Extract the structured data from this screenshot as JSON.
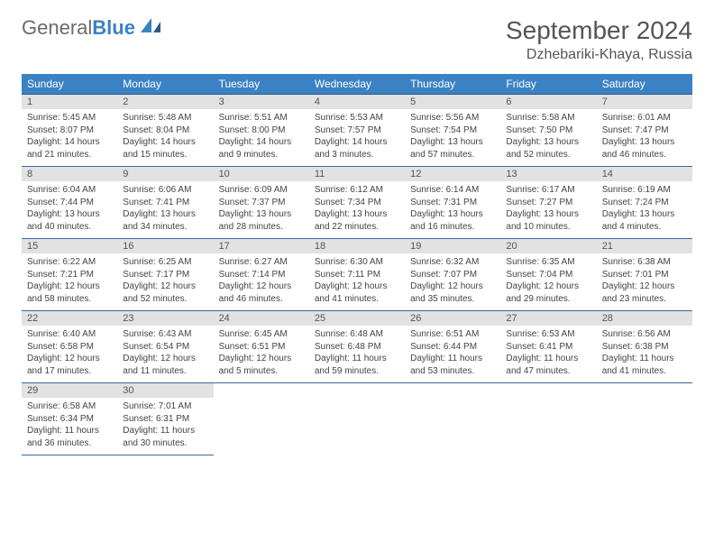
{
  "logo": {
    "text_gray": "General",
    "text_blue": "Blue"
  },
  "header": {
    "month_title": "September 2024",
    "location": "Dzhebariki-Khaya, Russia"
  },
  "colors": {
    "header_bg": "#3b82c4",
    "header_text": "#ffffff",
    "daynum_bg": "#e2e2e2",
    "border": "#2c5a8f",
    "body_text": "#444444",
    "title_text": "#555555"
  },
  "day_names": [
    "Sunday",
    "Monday",
    "Tuesday",
    "Wednesday",
    "Thursday",
    "Friday",
    "Saturday"
  ],
  "days": [
    {
      "n": 1,
      "sunrise": "5:45 AM",
      "sunset": "8:07 PM",
      "daylight": "14 hours and 21 minutes."
    },
    {
      "n": 2,
      "sunrise": "5:48 AM",
      "sunset": "8:04 PM",
      "daylight": "14 hours and 15 minutes."
    },
    {
      "n": 3,
      "sunrise": "5:51 AM",
      "sunset": "8:00 PM",
      "daylight": "14 hours and 9 minutes."
    },
    {
      "n": 4,
      "sunrise": "5:53 AM",
      "sunset": "7:57 PM",
      "daylight": "14 hours and 3 minutes."
    },
    {
      "n": 5,
      "sunrise": "5:56 AM",
      "sunset": "7:54 PM",
      "daylight": "13 hours and 57 minutes."
    },
    {
      "n": 6,
      "sunrise": "5:58 AM",
      "sunset": "7:50 PM",
      "daylight": "13 hours and 52 minutes."
    },
    {
      "n": 7,
      "sunrise": "6:01 AM",
      "sunset": "7:47 PM",
      "daylight": "13 hours and 46 minutes."
    },
    {
      "n": 8,
      "sunrise": "6:04 AM",
      "sunset": "7:44 PM",
      "daylight": "13 hours and 40 minutes."
    },
    {
      "n": 9,
      "sunrise": "6:06 AM",
      "sunset": "7:41 PM",
      "daylight": "13 hours and 34 minutes."
    },
    {
      "n": 10,
      "sunrise": "6:09 AM",
      "sunset": "7:37 PM",
      "daylight": "13 hours and 28 minutes."
    },
    {
      "n": 11,
      "sunrise": "6:12 AM",
      "sunset": "7:34 PM",
      "daylight": "13 hours and 22 minutes."
    },
    {
      "n": 12,
      "sunrise": "6:14 AM",
      "sunset": "7:31 PM",
      "daylight": "13 hours and 16 minutes."
    },
    {
      "n": 13,
      "sunrise": "6:17 AM",
      "sunset": "7:27 PM",
      "daylight": "13 hours and 10 minutes."
    },
    {
      "n": 14,
      "sunrise": "6:19 AM",
      "sunset": "7:24 PM",
      "daylight": "13 hours and 4 minutes."
    },
    {
      "n": 15,
      "sunrise": "6:22 AM",
      "sunset": "7:21 PM",
      "daylight": "12 hours and 58 minutes."
    },
    {
      "n": 16,
      "sunrise": "6:25 AM",
      "sunset": "7:17 PM",
      "daylight": "12 hours and 52 minutes."
    },
    {
      "n": 17,
      "sunrise": "6:27 AM",
      "sunset": "7:14 PM",
      "daylight": "12 hours and 46 minutes."
    },
    {
      "n": 18,
      "sunrise": "6:30 AM",
      "sunset": "7:11 PM",
      "daylight": "12 hours and 41 minutes."
    },
    {
      "n": 19,
      "sunrise": "6:32 AM",
      "sunset": "7:07 PM",
      "daylight": "12 hours and 35 minutes."
    },
    {
      "n": 20,
      "sunrise": "6:35 AM",
      "sunset": "7:04 PM",
      "daylight": "12 hours and 29 minutes."
    },
    {
      "n": 21,
      "sunrise": "6:38 AM",
      "sunset": "7:01 PM",
      "daylight": "12 hours and 23 minutes."
    },
    {
      "n": 22,
      "sunrise": "6:40 AM",
      "sunset": "6:58 PM",
      "daylight": "12 hours and 17 minutes."
    },
    {
      "n": 23,
      "sunrise": "6:43 AM",
      "sunset": "6:54 PM",
      "daylight": "12 hours and 11 minutes."
    },
    {
      "n": 24,
      "sunrise": "6:45 AM",
      "sunset": "6:51 PM",
      "daylight": "12 hours and 5 minutes."
    },
    {
      "n": 25,
      "sunrise": "6:48 AM",
      "sunset": "6:48 PM",
      "daylight": "11 hours and 59 minutes."
    },
    {
      "n": 26,
      "sunrise": "6:51 AM",
      "sunset": "6:44 PM",
      "daylight": "11 hours and 53 minutes."
    },
    {
      "n": 27,
      "sunrise": "6:53 AM",
      "sunset": "6:41 PM",
      "daylight": "11 hours and 47 minutes."
    },
    {
      "n": 28,
      "sunrise": "6:56 AM",
      "sunset": "6:38 PM",
      "daylight": "11 hours and 41 minutes."
    },
    {
      "n": 29,
      "sunrise": "6:58 AM",
      "sunset": "6:34 PM",
      "daylight": "11 hours and 36 minutes."
    },
    {
      "n": 30,
      "sunrise": "7:01 AM",
      "sunset": "6:31 PM",
      "daylight": "11 hours and 30 minutes."
    }
  ],
  "labels": {
    "sunrise_prefix": "Sunrise: ",
    "sunset_prefix": "Sunset: ",
    "daylight_prefix": "Daylight: "
  }
}
